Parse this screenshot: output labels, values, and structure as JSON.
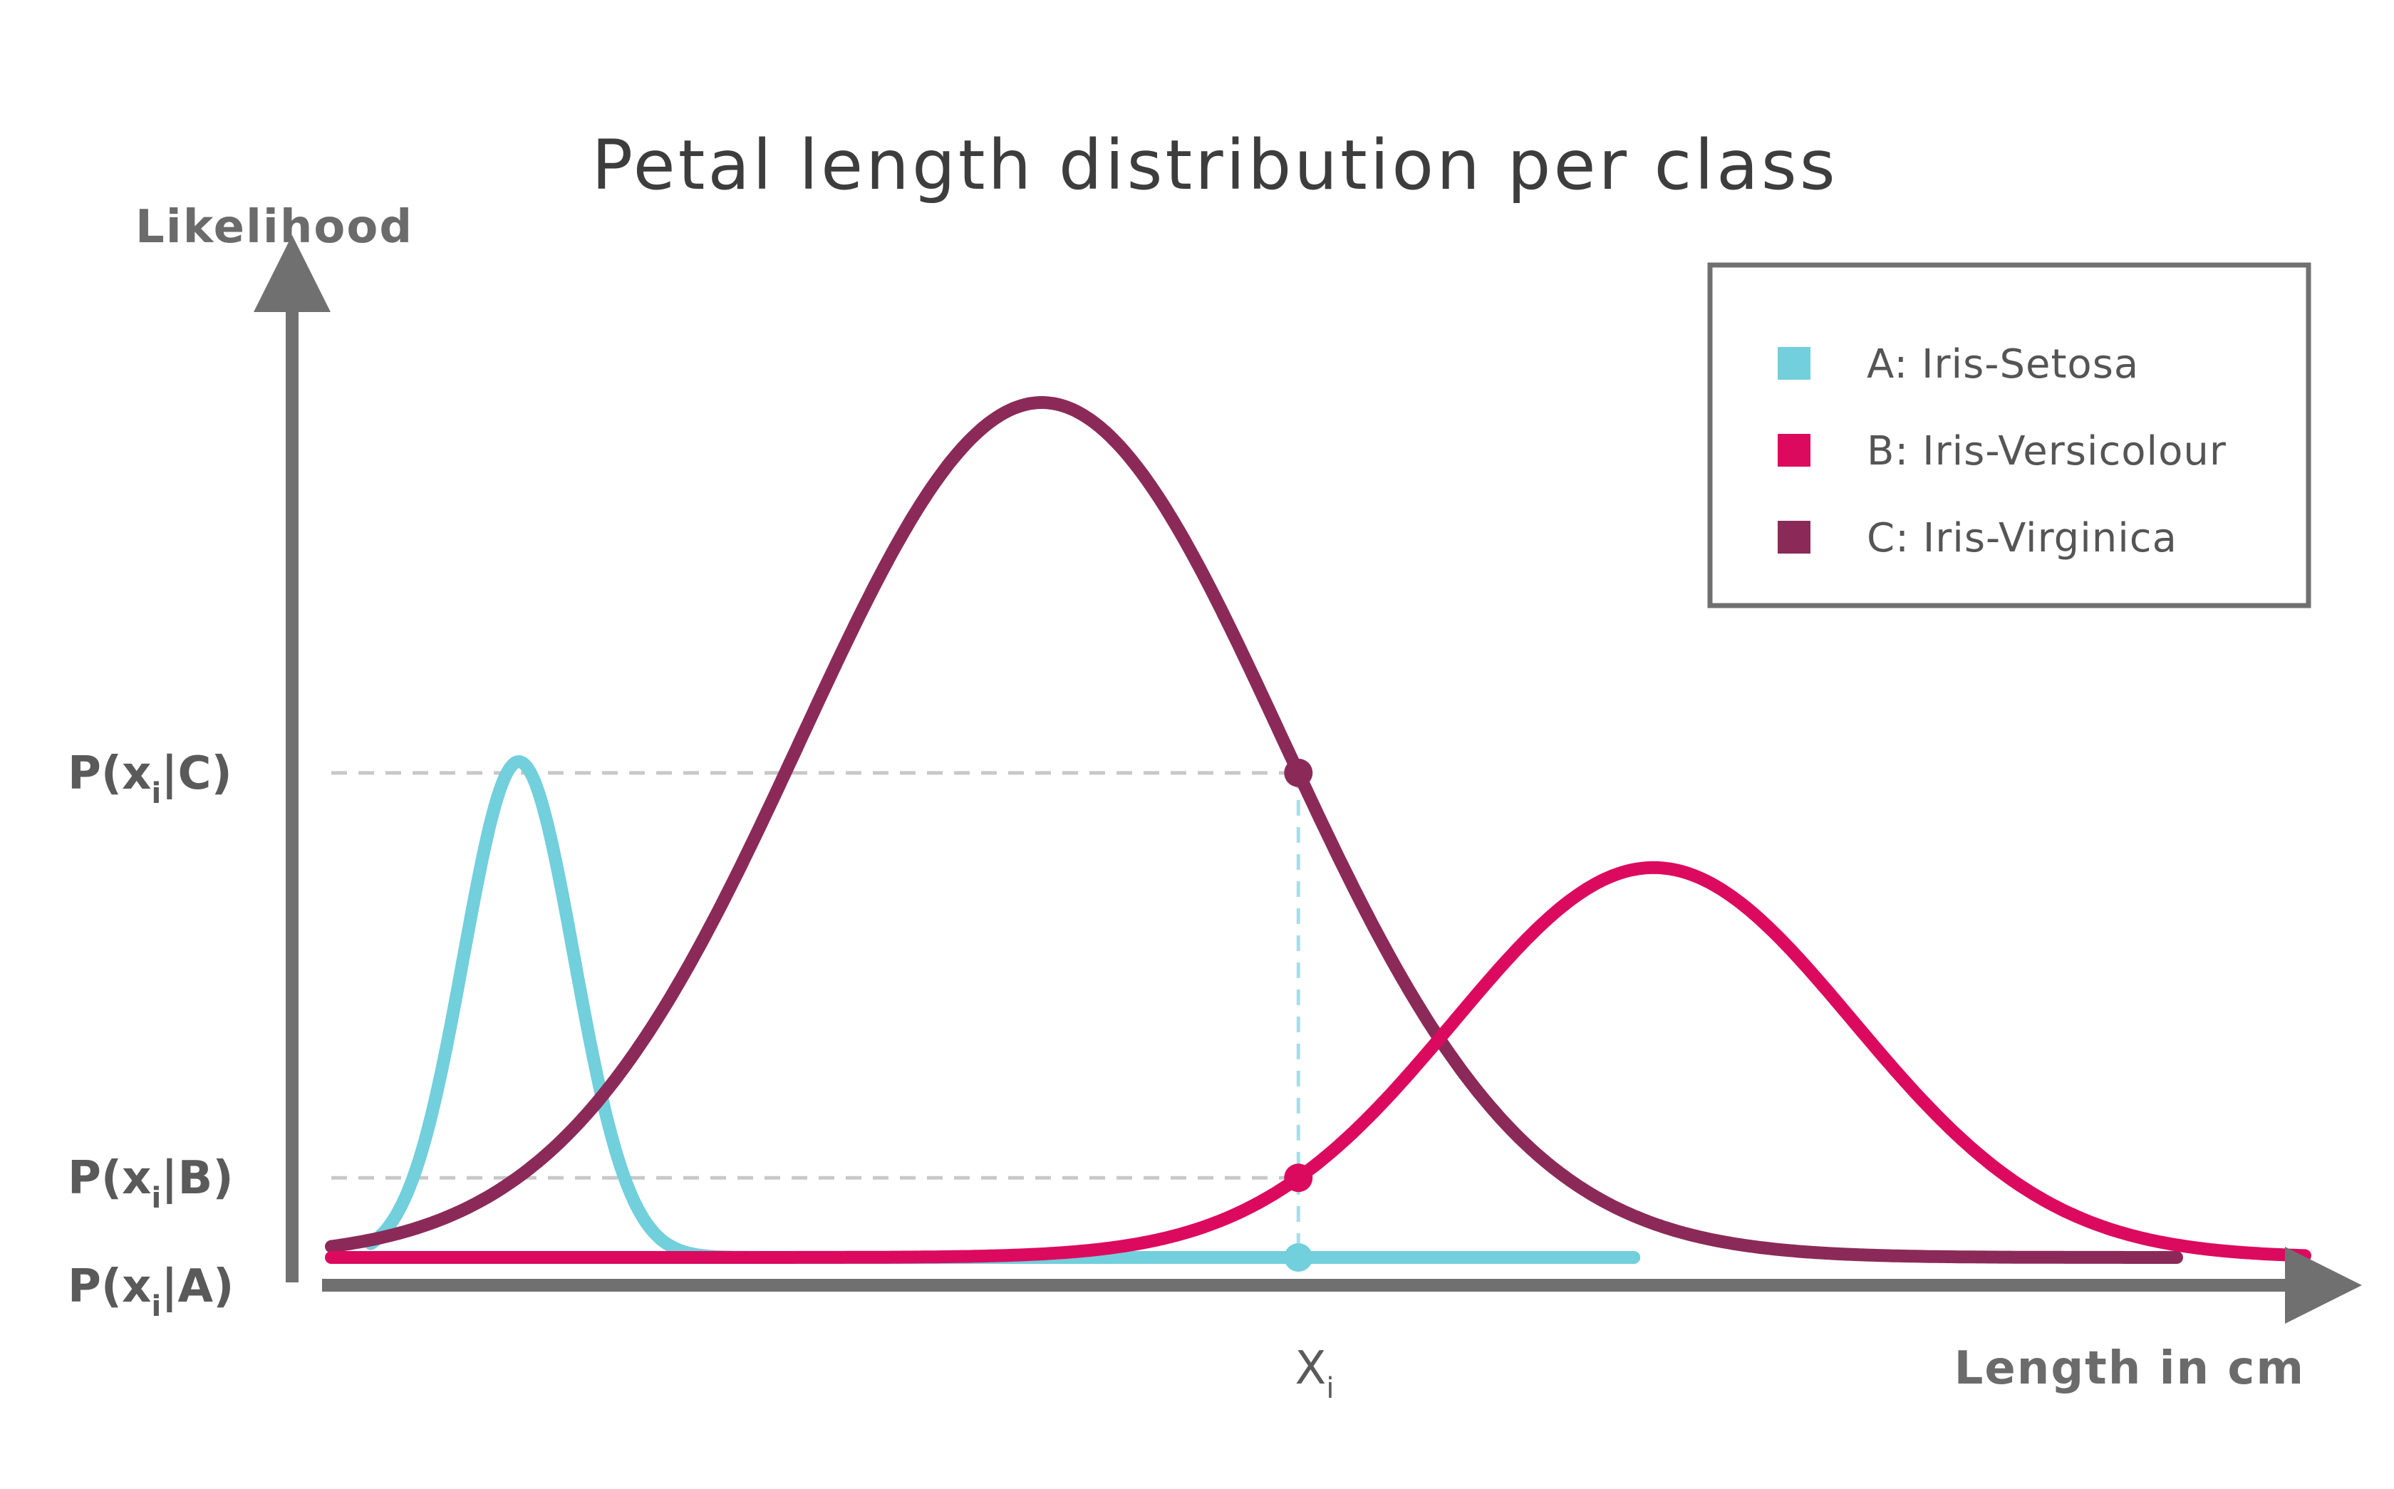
{
  "chart_data": {
    "type": "line",
    "title": "Petal length distribution per class",
    "ylabel": "Likelihood",
    "xlabel": "Length in cm",
    "x_marker_label": "X",
    "x_marker_sub": "i",
    "x": 0.49,
    "xlim": [
      0,
      1
    ],
    "ylim": [
      0,
      1
    ],
    "legend_position": "top-right",
    "grid": false,
    "y_ticks": [
      {
        "prefix": "P(x",
        "sub": "i",
        "suffix": "|C)",
        "series": "C",
        "value": 0.412
      },
      {
        "prefix": "P(x",
        "sub": "i",
        "suffix": "|B)",
        "series": "B",
        "value": 0.077
      },
      {
        "prefix": "P(x",
        "sub": "i",
        "suffix": "|A)",
        "series": "A",
        "value": 0.0
      }
    ],
    "series": [
      {
        "key": "A",
        "name": "A: Iris-Setosa",
        "color": "#72cfdc",
        "mu": 0.095,
        "sigma": 0.028,
        "amp": 0.58,
        "range": [
          0.02,
          0.66
        ]
      },
      {
        "key": "B",
        "name": "B: Iris-Versicolour",
        "color": "#dc0a5f",
        "mu": 0.67,
        "sigma": 0.101,
        "amp": 0.456,
        "range": [
          0.0,
          1.0
        ]
      },
      {
        "key": "C",
        "name": "C: Iris-Virginica",
        "color": "#8b2a58",
        "mu": 0.36,
        "sigma": 0.122,
        "amp": 1.0,
        "range": [
          0.0,
          0.935
        ]
      }
    ]
  }
}
